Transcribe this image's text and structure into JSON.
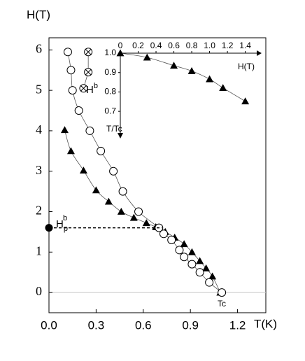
{
  "chart_data": [
    {
      "type": "scatter",
      "xlabel": "T(K)",
      "ylabel": "H(T)",
      "x_ticks": [
        "0.0",
        "0.3",
        "0.6",
        "0.9",
        "1.2"
      ],
      "y_ticks": [
        "0",
        "1",
        "2",
        "3",
        "4",
        "5",
        "6"
      ],
      "xlim": [
        0.0,
        1.38
      ],
      "ylim": [
        -0.5,
        6.3
      ],
      "grid": false,
      "series": [
        {
          "marker": "filled-triangle",
          "x": [
            0.1,
            0.14,
            0.22,
            0.3,
            0.38,
            0.46,
            0.54,
            0.62,
            0.68,
            0.74,
            0.8,
            0.86,
            0.91,
            0.96,
            1.0,
            1.04,
            1.09
          ],
          "y": [
            4.02,
            3.5,
            3.02,
            2.53,
            2.25,
            2.0,
            1.85,
            1.72,
            1.62,
            1.5,
            1.36,
            1.2,
            1.0,
            0.78,
            0.6,
            0.4,
            0.0
          ]
        },
        {
          "marker": "open-circle",
          "x": [
            0.12,
            0.14,
            0.15,
            0.19,
            0.26,
            0.33,
            0.41,
            0.47,
            0.57,
            0.7,
            0.73,
            0.78,
            0.83,
            0.86,
            0.91,
            0.96,
            1.02,
            1.1
          ],
          "y": [
            5.95,
            5.5,
            5.0,
            4.5,
            4.0,
            3.5,
            3.0,
            2.5,
            2.0,
            1.6,
            1.45,
            1.3,
            1.05,
            0.88,
            0.7,
            0.5,
            0.25,
            0.0
          ]
        },
        {
          "marker": "crossed-circle",
          "x": [
            0.25,
            0.25,
            0.22
          ],
          "y": [
            5.95,
            5.45,
            5.05
          ]
        }
      ],
      "point_marker": {
        "x": 0.0,
        "y": 1.6
      },
      "annotations": {
        "hb": "H",
        "hb_sup": "b",
        "hpb": "H",
        "hpb_sub": "p",
        "hpb_sup": "b",
        "tc": "Tc"
      }
    },
    {
      "type": "line",
      "xlabel": "H(T)",
      "ylabel": "T/Tc",
      "x_ticks": [
        "0",
        "0.2",
        "0.4",
        "0.6",
        "0.8",
        "1.0",
        "1.2",
        "1.4"
      ],
      "y_ticks": [
        "1.0",
        "0.9",
        "0.8",
        "0.7"
      ],
      "xlim": [
        0,
        1.45
      ],
      "ylim": [
        0.65,
        1.0
      ],
      "series": [
        {
          "marker": "filled-triangle",
          "x": [
            0.0,
            0.3,
            0.6,
            0.8,
            1.0,
            1.15,
            1.4
          ],
          "y": [
            1.0,
            0.978,
            0.936,
            0.908,
            0.866,
            0.821,
            0.752
          ]
        }
      ]
    }
  ]
}
